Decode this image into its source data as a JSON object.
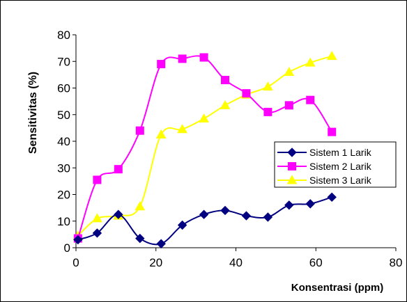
{
  "chart_data": {
    "type": "line",
    "title": "",
    "xlabel": "Konsentrasi (ppm)",
    "ylabel": "Sensitivitas (%)",
    "xlim": [
      0,
      80
    ],
    "ylim": [
      0,
      80
    ],
    "xticks": [
      "0",
      "20",
      "40",
      "60",
      "80"
    ],
    "yticks": [
      "0",
      "10",
      "20",
      "30",
      "40",
      "50",
      "60",
      "70",
      "80"
    ],
    "grid": false,
    "legend_position": "right",
    "series": [
      {
        "name": "Sistem 1 Larik",
        "color": "#000080",
        "marker": "diamond",
        "x": [
          0.5,
          5.3,
          10.6,
          16,
          21.3,
          26.6,
          32,
          37.3,
          42.6,
          48,
          53.3,
          58.6,
          64
        ],
        "y": [
          3,
          5.5,
          12.5,
          3.5,
          1.5,
          8.5,
          12.5,
          14,
          12,
          11.5,
          16,
          16.5,
          19
        ]
      },
      {
        "name": "Sistem 2 Larik",
        "color": "#FF00FF",
        "marker": "square",
        "x": [
          0.5,
          5.3,
          10.6,
          16,
          21.3,
          26.6,
          32,
          37.3,
          42.6,
          48,
          53.3,
          58.6,
          64
        ],
        "y": [
          3.5,
          25.5,
          29.5,
          44,
          69,
          71,
          71.5,
          63,
          58,
          51,
          53.5,
          55.5,
          43.5
        ]
      },
      {
        "name": "Sistem 3 Larik",
        "color": "#FFFF00",
        "marker": "triangle",
        "x": [
          0.5,
          5.3,
          10.6,
          16,
          21.3,
          26.6,
          32,
          37.3,
          42.6,
          48,
          53.3,
          58.6,
          64
        ],
        "y": [
          4.5,
          11,
          12,
          15.5,
          42.5,
          44.5,
          48.5,
          53.5,
          57.5,
          60.5,
          66,
          69.5,
          72
        ]
      }
    ]
  }
}
